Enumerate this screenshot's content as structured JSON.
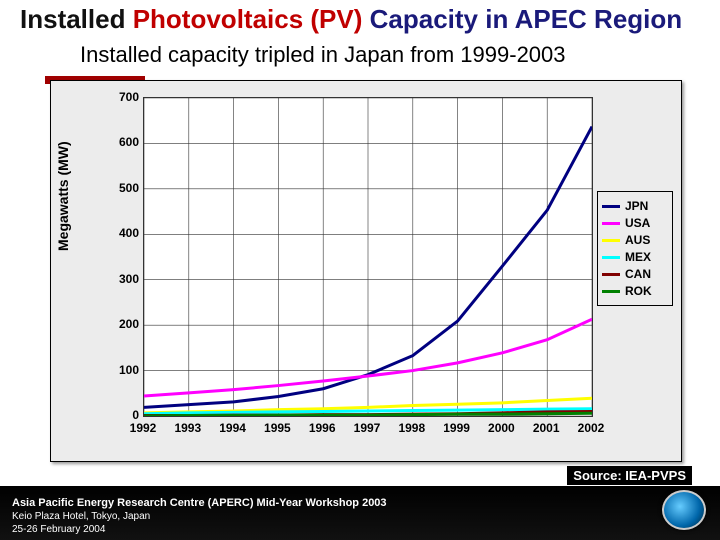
{
  "title_prefix": "Installed ",
  "title_pv": "Photovoltaics (PV)",
  "title_suffix": " Capacity in APEC Region",
  "subtitle": "Installed capacity tripled in Japan from 1999-2003",
  "source": "Source: IEA-PVPS",
  "footer_line1": "Asia Pacific Energy Research Centre (APERC) Mid-Year Workshop 2003",
  "footer_line2": "Keio Plaza Hotel, Tokyo, Japan",
  "footer_line3": "25-26 February 2004",
  "chart": {
    "type": "line",
    "ylabel": "Megawatts (MW)",
    "ylim": [
      0,
      700
    ],
    "ytick_step": 100,
    "yticks": [
      0,
      100,
      200,
      300,
      400,
      500,
      600,
      700
    ],
    "x_categories": [
      "1992",
      "1993",
      "1994",
      "1995",
      "1996",
      "1997",
      "1998",
      "1999",
      "2000",
      "2001",
      "2002"
    ],
    "background_color": "#ececec",
    "plot_bg": "#ffffff",
    "grid_color": "#333333",
    "line_width": 3,
    "series": [
      {
        "name": "JPN",
        "color": "#000080",
        "values": [
          19,
          25,
          31,
          43,
          60,
          91,
          133,
          209,
          330,
          453,
          637
        ]
      },
      {
        "name": "USA",
        "color": "#ff00ff",
        "values": [
          44,
          51,
          58,
          67,
          77,
          88,
          100,
          117,
          139,
          168,
          213
        ]
      },
      {
        "name": "AUS",
        "color": "#ffff00",
        "values": [
          7,
          9,
          11,
          14,
          16,
          19,
          23,
          26,
          29,
          34,
          39
        ]
      },
      {
        "name": "MEX",
        "color": "#00ffff",
        "values": [
          5,
          7,
          8,
          9,
          10,
          11,
          12,
          13,
          14,
          15,
          16
        ]
      },
      {
        "name": "CAN",
        "color": "#800000",
        "values": [
          1,
          1,
          2,
          2,
          3,
          3,
          4,
          5,
          7,
          9,
          10
        ]
      },
      {
        "name": "ROK",
        "color": "#008000",
        "values": [
          0,
          1,
          1,
          2,
          2,
          2,
          3,
          4,
          4,
          5,
          6
        ]
      }
    ]
  }
}
